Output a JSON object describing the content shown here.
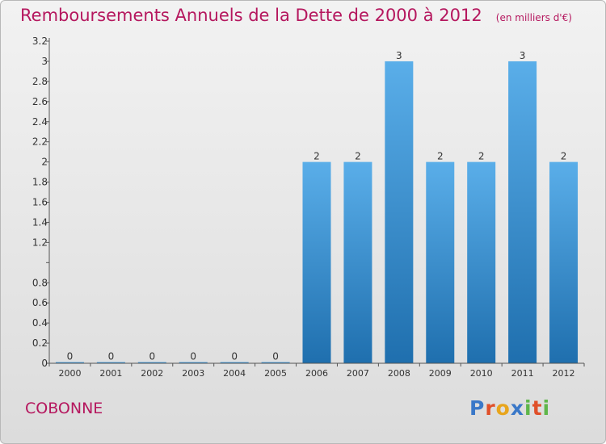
{
  "header": {
    "title": "Remboursements Annuels de la Dette de 2000 à 2012",
    "unit_note": "(en milliers d'€)"
  },
  "footer": {
    "place_name": "COBONNE",
    "logo_text": "Proxiti"
  },
  "colors": {
    "title": "#b5175e",
    "bar_top": "#5aaee9",
    "bar_bottom": "#1f6fae",
    "logo": [
      "#3a78c8",
      "#e0502a",
      "#e8a51c",
      "#3a78c8",
      "#5fb64a",
      "#e0502a",
      "#5fb64a"
    ]
  },
  "chart_data": {
    "type": "bar",
    "categories": [
      "2000",
      "2001",
      "2002",
      "2003",
      "2004",
      "2005",
      "2006",
      "2007",
      "2008",
      "2009",
      "2010",
      "2011",
      "2012"
    ],
    "values": [
      0,
      0,
      0,
      0,
      0,
      0,
      2,
      2,
      3,
      2,
      2,
      3,
      2
    ],
    "data_labels": [
      "0",
      "0",
      "0",
      "0",
      "0",
      "0",
      "2",
      "2",
      "3",
      "2",
      "2",
      "3",
      "2"
    ],
    "y_ticks": [
      0,
      0.2,
      0.4,
      0.6,
      0.8,
      1,
      1.2,
      1.4,
      1.6,
      1.8,
      2,
      2.2,
      2.4,
      2.6,
      2.8,
      3,
      3.2
    ],
    "y_tick_labels": [
      "0",
      "0.2",
      "0.4",
      "0.6",
      "0.8",
      "",
      "1.2",
      "1.4",
      "1.6",
      "1.8",
      "2",
      "2.2",
      "2.4",
      "2.6",
      "2.8",
      "3",
      "3.2"
    ],
    "ylim": [
      0,
      3.2
    ],
    "grid": false,
    "legend": "none"
  }
}
